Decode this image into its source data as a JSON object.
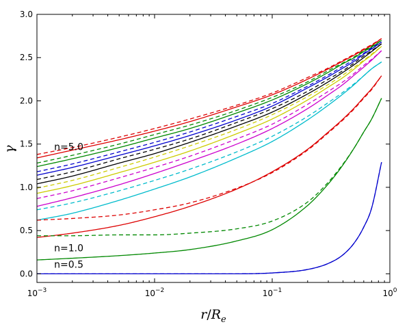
{
  "chart_data": {
    "type": "line",
    "xlabel_main": "r",
    "xlabel_sep": "/",
    "xlabel_base": "R",
    "xlabel_sub": "e",
    "ylabel": "γ",
    "xscale": "log",
    "xlim": [
      0.001,
      1.0
    ],
    "ylim": [
      -0.1,
      3.0
    ],
    "x_ticks": [
      {
        "value": 0.001,
        "base": "10",
        "exp": "−3"
      },
      {
        "value": 0.01,
        "base": "10",
        "exp": "−2"
      },
      {
        "value": 0.1,
        "base": "10",
        "exp": "−1"
      },
      {
        "value": 1.0,
        "base": "10",
        "exp": "0"
      }
    ],
    "y_ticks": [
      {
        "value": 0.0,
        "label": "0.0"
      },
      {
        "value": 0.5,
        "label": "0.5"
      },
      {
        "value": 1.0,
        "label": "1.0"
      },
      {
        "value": 1.5,
        "label": "1.5"
      },
      {
        "value": 2.0,
        "label": "2.0"
      },
      {
        "value": 2.5,
        "label": "2.5"
      },
      {
        "value": 3.0,
        "label": "3.0"
      }
    ],
    "grid": false,
    "annotations": [
      {
        "text": "n=5.0",
        "x": 0.0014,
        "y": 1.43
      },
      {
        "text": "n=1.0",
        "x": 0.0014,
        "y": 0.26
      },
      {
        "text": "n=0.5",
        "x": 0.0014,
        "y": 0.07
      }
    ],
    "x": [
      0.001,
      0.002,
      0.005,
      0.01,
      0.02,
      0.05,
      0.1,
      0.2,
      0.3,
      0.4,
      0.5,
      0.6,
      0.7,
      0.85
    ],
    "series": [
      {
        "color": "#dd0000",
        "style": "solid",
        "values": [
          1.34,
          1.43,
          1.55,
          1.65,
          1.76,
          1.93,
          2.07,
          2.25,
          2.37,
          2.46,
          2.53,
          2.59,
          2.64,
          2.72
        ]
      },
      {
        "color": "#dd0000",
        "style": "dashed",
        "values": [
          1.38,
          1.46,
          1.58,
          1.68,
          1.79,
          1.95,
          2.09,
          2.27,
          2.38,
          2.47,
          2.54,
          2.6,
          2.65,
          2.72
        ]
      },
      {
        "color": "#008800",
        "style": "solid",
        "values": [
          1.24,
          1.33,
          1.46,
          1.57,
          1.68,
          1.86,
          2.01,
          2.2,
          2.33,
          2.43,
          2.5,
          2.57,
          2.62,
          2.7
        ]
      },
      {
        "color": "#008800",
        "style": "dashed",
        "values": [
          1.28,
          1.37,
          1.5,
          1.61,
          1.72,
          1.89,
          2.04,
          2.22,
          2.35,
          2.44,
          2.51,
          2.58,
          2.63,
          2.7
        ]
      },
      {
        "color": "#0000cc",
        "style": "solid",
        "values": [
          1.14,
          1.23,
          1.37,
          1.48,
          1.6,
          1.78,
          1.94,
          2.15,
          2.28,
          2.38,
          2.46,
          2.54,
          2.6,
          2.68
        ]
      },
      {
        "color": "#0000cc",
        "style": "dashed",
        "values": [
          1.18,
          1.27,
          1.41,
          1.52,
          1.64,
          1.82,
          1.97,
          2.17,
          2.3,
          2.4,
          2.48,
          2.55,
          2.61,
          2.68
        ]
      },
      {
        "color": "#000000",
        "style": "solid",
        "values": [
          1.04,
          1.13,
          1.28,
          1.39,
          1.52,
          1.71,
          1.87,
          2.08,
          2.22,
          2.33,
          2.42,
          2.5,
          2.57,
          2.66
        ]
      },
      {
        "color": "#000000",
        "style": "dashed",
        "values": [
          1.09,
          1.18,
          1.33,
          1.44,
          1.56,
          1.75,
          1.91,
          2.11,
          2.25,
          2.35,
          2.44,
          2.52,
          2.58,
          2.66
        ]
      },
      {
        "color": "#cccc00",
        "style": "solid",
        "values": [
          0.93,
          1.02,
          1.17,
          1.29,
          1.42,
          1.62,
          1.79,
          2.01,
          2.16,
          2.27,
          2.37,
          2.46,
          2.53,
          2.63
        ]
      },
      {
        "color": "#cccc00",
        "style": "dashed",
        "values": [
          0.99,
          1.08,
          1.23,
          1.35,
          1.48,
          1.67,
          1.84,
          2.05,
          2.19,
          2.3,
          2.39,
          2.47,
          2.54,
          2.63
        ]
      },
      {
        "color": "#cc00cc",
        "style": "solid",
        "values": [
          0.78,
          0.88,
          1.03,
          1.16,
          1.3,
          1.5,
          1.68,
          1.91,
          2.07,
          2.19,
          2.3,
          2.39,
          2.47,
          2.58
        ]
      },
      {
        "color": "#cc00cc",
        "style": "dashed",
        "values": [
          0.87,
          0.96,
          1.11,
          1.23,
          1.36,
          1.56,
          1.73,
          1.96,
          2.11,
          2.22,
          2.32,
          2.41,
          2.48,
          2.58
        ]
      },
      {
        "color": "#00bbcc",
        "style": "solid",
        "values": [
          0.62,
          0.7,
          0.85,
          0.98,
          1.12,
          1.34,
          1.53,
          1.78,
          1.95,
          2.08,
          2.19,
          2.29,
          2.37,
          2.45
        ]
      },
      {
        "color": "#00bbcc",
        "style": "dashed",
        "values": [
          0.74,
          0.82,
          0.96,
          1.08,
          1.21,
          1.41,
          1.59,
          1.82,
          1.98,
          2.1,
          2.2,
          2.29,
          2.37,
          2.45
        ]
      },
      {
        "color": "#dd0000",
        "style": "solid",
        "values": [
          0.42,
          0.47,
          0.56,
          0.66,
          0.78,
          0.98,
          1.18,
          1.44,
          1.64,
          1.79,
          1.92,
          2.04,
          2.14,
          2.29
        ]
      },
      {
        "color": "#dd0000",
        "style": "dashed",
        "values": [
          0.62,
          0.64,
          0.68,
          0.74,
          0.82,
          0.99,
          1.17,
          1.43,
          1.63,
          1.78,
          1.91,
          2.03,
          2.13,
          2.29
        ]
      },
      {
        "color": "#008800",
        "style": "solid",
        "values": [
          0.16,
          0.18,
          0.21,
          0.24,
          0.28,
          0.38,
          0.51,
          0.79,
          1.04,
          1.26,
          1.46,
          1.64,
          1.79,
          2.03
        ]
      },
      {
        "color": "#008800",
        "style": "dashed",
        "values": [
          0.44,
          0.44,
          0.45,
          0.45,
          0.47,
          0.52,
          0.61,
          0.83,
          1.06,
          1.27,
          1.46,
          1.64,
          1.79,
          2.03
        ]
      },
      {
        "color": "#0000cc",
        "style": "solid",
        "values": [
          0.0,
          0.0,
          0.0,
          0.0,
          0.0,
          0.0,
          0.01,
          0.05,
          0.12,
          0.22,
          0.36,
          0.54,
          0.76,
          1.29
        ]
      },
      {
        "color": "#0000cc",
        "style": "dashed",
        "values": [
          0.0,
          0.0,
          0.0,
          0.0,
          0.0,
          0.0,
          0.01,
          0.05,
          0.12,
          0.22,
          0.36,
          0.54,
          0.76,
          1.29
        ]
      }
    ]
  }
}
